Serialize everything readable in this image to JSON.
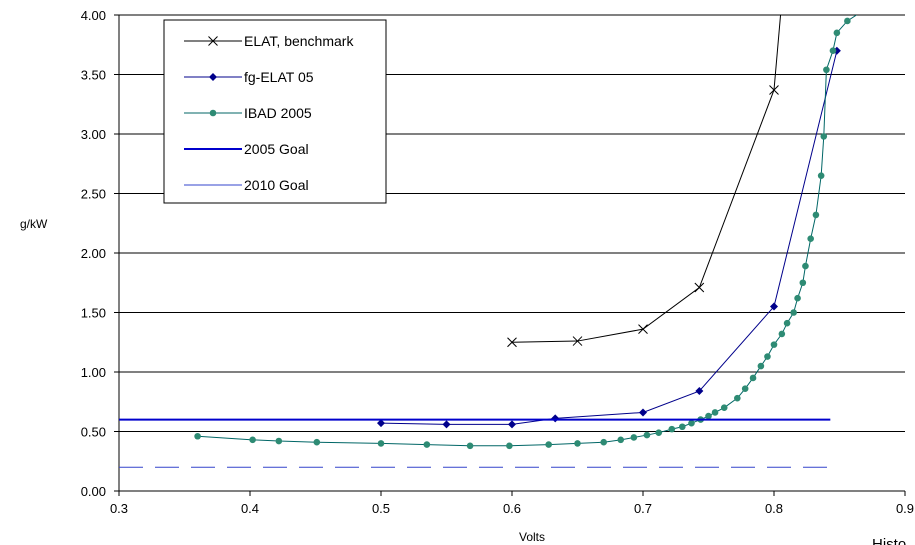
{
  "chart_data": {
    "type": "line",
    "title": "",
    "xlabel": "Volts",
    "ylabel": "g/kW",
    "xlim": [
      0.3,
      0.9
    ],
    "ylim": [
      0,
      4
    ],
    "x_ticks": [
      "0.3",
      "0.4",
      "0.5",
      "0.6",
      "0.7",
      "0.8",
      "0.9"
    ],
    "y_ticks": [
      "0.00",
      "0.50",
      "1.00",
      "1.50",
      "2.00",
      "2.50",
      "3.00",
      "3.50",
      "4.00"
    ],
    "grid": "horizontal",
    "legend_position": "top-left",
    "clipped_text": "Histo",
    "series": [
      {
        "name": "ELAT, benchmark",
        "color": "#000000",
        "marker": "x",
        "x": [
          0.6,
          0.65,
          0.7,
          0.743,
          0.8,
          0.805
        ],
        "y": [
          1.25,
          1.26,
          1.36,
          1.71,
          3.37,
          4.0
        ]
      },
      {
        "name": "fg-ELAT 05",
        "color": "#00008B",
        "marker": "diamond",
        "x": [
          0.5,
          0.55,
          0.6,
          0.633,
          0.7,
          0.743,
          0.8,
          0.848
        ],
        "y": [
          0.57,
          0.56,
          0.56,
          0.61,
          0.66,
          0.84,
          1.55,
          3.7
        ]
      },
      {
        "name": "IBAD 2005",
        "color": "#006666",
        "marker_color": "#2E8B74",
        "marker": "circle",
        "x": [
          0.36,
          0.402,
          0.422,
          0.451,
          0.5,
          0.535,
          0.568,
          0.598,
          0.628,
          0.65,
          0.67,
          0.683,
          0.693,
          0.703,
          0.712,
          0.722,
          0.73,
          0.737,
          0.744,
          0.75,
          0.755,
          0.762,
          0.772,
          0.778,
          0.784,
          0.79,
          0.795,
          0.8,
          0.806,
          0.81,
          0.815,
          0.818,
          0.822,
          0.824,
          0.828,
          0.832,
          0.836,
          0.838,
          0.84,
          0.845,
          0.848,
          0.856,
          0.863
        ],
        "y": [
          0.46,
          0.43,
          0.42,
          0.41,
          0.4,
          0.39,
          0.38,
          0.38,
          0.39,
          0.4,
          0.41,
          0.43,
          0.45,
          0.47,
          0.49,
          0.52,
          0.54,
          0.57,
          0.6,
          0.63,
          0.66,
          0.7,
          0.78,
          0.86,
          0.95,
          1.05,
          1.13,
          1.23,
          1.32,
          1.41,
          1.5,
          1.62,
          1.75,
          1.89,
          2.12,
          2.32,
          2.65,
          2.98,
          3.54,
          3.7,
          3.85,
          3.95,
          4.0
        ]
      },
      {
        "name": "2005 Goal",
        "color": "#0000CC",
        "style": "solid-thick",
        "x": [
          0.3,
          0.843
        ],
        "y": [
          0.6,
          0.6
        ]
      },
      {
        "name": "2010 Goal",
        "color": "#3344CC",
        "style": "dashed",
        "x": [
          0.3,
          0.843
        ],
        "y": [
          0.2,
          0.2
        ]
      }
    ]
  }
}
